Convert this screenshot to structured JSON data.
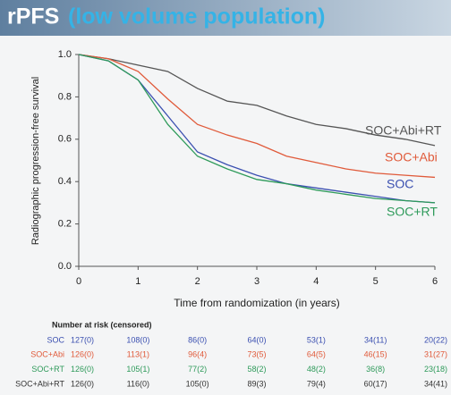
{
  "chart_data": {
    "type": "line",
    "title": "rPFS",
    "subtitle": "(low volume population)",
    "x_label": "Time from randomization (in years)",
    "y_label": "Radiographic progression-free survival",
    "x": [
      0,
      0.5,
      1,
      1.5,
      2,
      2.5,
      3,
      3.5,
      4,
      4.5,
      5,
      5.5,
      6
    ],
    "series": [
      {
        "name": "SOC+Abi+RT",
        "color": "#555555",
        "values": [
          1.0,
          0.98,
          0.95,
          0.92,
          0.84,
          0.78,
          0.76,
          0.71,
          0.67,
          0.65,
          0.62,
          0.6,
          0.57
        ]
      },
      {
        "name": "SOC+Abi",
        "color": "#e05a3a",
        "values": [
          1.0,
          0.98,
          0.92,
          0.79,
          0.67,
          0.62,
          0.58,
          0.52,
          0.49,
          0.46,
          0.44,
          0.43,
          0.42
        ]
      },
      {
        "name": "SOC",
        "color": "#3a4fb0",
        "values": [
          1.0,
          0.97,
          0.88,
          0.71,
          0.54,
          0.48,
          0.43,
          0.39,
          0.37,
          0.35,
          0.33,
          0.31,
          0.3
        ]
      },
      {
        "name": "SOC+RT",
        "color": "#2e9a5a",
        "values": [
          1.0,
          0.97,
          0.88,
          0.67,
          0.52,
          0.46,
          0.41,
          0.39,
          0.36,
          0.34,
          0.32,
          0.31,
          0.3
        ]
      }
    ],
    "xlim": [
      0,
      6
    ],
    "xticks": [
      0,
      1,
      2,
      3,
      4,
      5,
      6
    ],
    "ylim": [
      0,
      1
    ],
    "yticks": [
      {
        "value": 0,
        "label": "0.0"
      },
      0.2,
      0.4,
      0.6,
      0.8,
      {
        "value": 1,
        "label": "1.0"
      }
    ],
    "risk_table": {
      "title": "Number at risk (censored)",
      "rows": [
        {
          "label": "SOC",
          "color": "#3a4fb0",
          "values": [
            "127(0)",
            "108(0)",
            "86(0)",
            "64(0)",
            "53(1)",
            "34(11)",
            "20(22)"
          ]
        },
        {
          "label": "SOC+Abi",
          "color": "#e05a3a",
          "values": [
            "126(0)",
            "113(1)",
            "96(4)",
            "73(5)",
            "64(5)",
            "46(15)",
            "31(27)"
          ]
        },
        {
          "label": "SOC+RT",
          "color": "#2e9a5a",
          "values": [
            "126(0)",
            "105(1)",
            "77(2)",
            "58(2)",
            "48(2)",
            "36(8)",
            "23(18)"
          ]
        },
        {
          "label": "SOC+Abi+RT",
          "color": "#333333",
          "values": [
            "126(0)",
            "116(0)",
            "105(0)",
            "89(3)",
            "79(4)",
            "60(17)",
            "34(41)"
          ]
        }
      ]
    }
  }
}
